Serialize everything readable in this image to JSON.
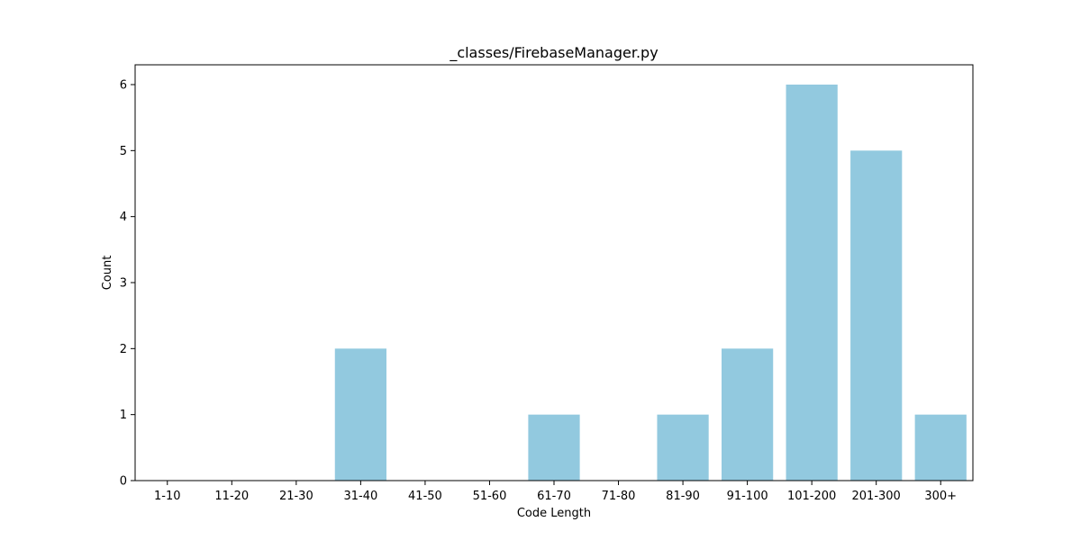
{
  "chart_data": {
    "type": "bar",
    "title": "_classes/FirebaseManager.py",
    "xlabel": "Code Length",
    "ylabel": "Count",
    "categories": [
      "1-10",
      "11-20",
      "21-30",
      "31-40",
      "41-50",
      "51-60",
      "61-70",
      "71-80",
      "81-90",
      "91-100",
      "101-200",
      "201-300",
      "300+"
    ],
    "values": [
      0,
      0,
      0,
      2,
      0,
      0,
      1,
      0,
      1,
      2,
      6,
      5,
      1
    ],
    "ylim": [
      0,
      6.3
    ],
    "yticks": [
      0,
      1,
      2,
      3,
      4,
      5,
      6
    ],
    "bar_color": "#92c9df",
    "grid": false,
    "legend": "none"
  }
}
